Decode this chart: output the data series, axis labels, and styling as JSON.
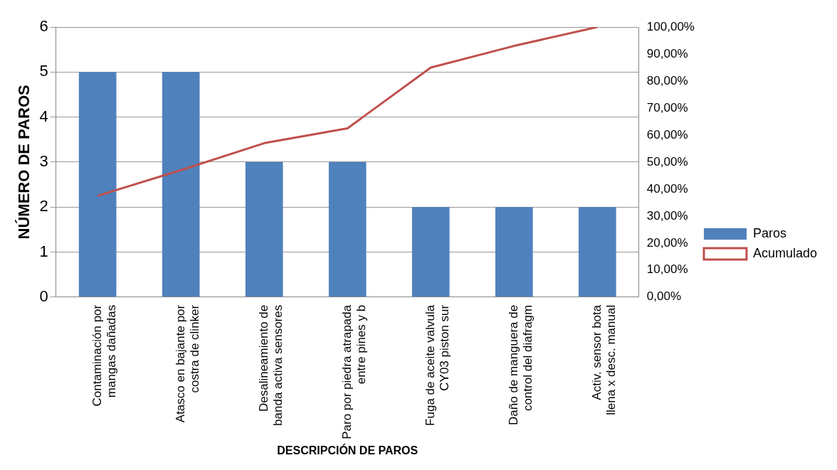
{
  "chart_data": {
    "type": "bar",
    "xlabel": "DESCRIPCIÓN DE PAROS",
    "ylabel": "NÚMERO DE PAROS",
    "categories": [
      "Contaminación por mangas dañadas",
      "Atasco en bajante por costra de clinker",
      "Desalineamiento de banda activa sensores",
      "Paro por piedra atrapada entre pines y b",
      "Fuga de aceite valvula CY03 piston sur",
      "Daño de manguera de control del diafragm",
      "Activ. sensor bota llena x desc. manual"
    ],
    "series": [
      {
        "name": "Paros",
        "color": "#4f81bd",
        "values": [
          5,
          5,
          3,
          3,
          2,
          2,
          2
        ]
      },
      {
        "name": "Acumulado",
        "type": "line",
        "axis": "y2",
        "color": "#c0504d",
        "values": [
          37.5,
          47,
          57,
          62.5,
          85,
          93,
          100
        ]
      }
    ],
    "ylim": [
      0,
      6
    ],
    "yticks": [
      0,
      1,
      2,
      3,
      4,
      5,
      6
    ],
    "y2lim": [
      0,
      100
    ],
    "y2ticks": [
      {
        "value": 0,
        "label": "0,00%"
      },
      {
        "value": 10,
        "label": "10,00%"
      },
      {
        "value": 20,
        "label": "20,00%"
      },
      {
        "value": 30,
        "label": "30,00%"
      },
      {
        "value": 40,
        "label": "40,00%"
      },
      {
        "value": 50,
        "label": "50,00%"
      },
      {
        "value": 60,
        "label": "60,00%"
      },
      {
        "value": 70,
        "label": "70,00%"
      },
      {
        "value": 80,
        "label": "80,00%"
      },
      {
        "value": 90,
        "label": "90,00%"
      },
      {
        "value": 100,
        "label": "100,00%"
      }
    ],
    "grid": "y",
    "legend": "right",
    "marker": "none",
    "line_style": "solid"
  }
}
